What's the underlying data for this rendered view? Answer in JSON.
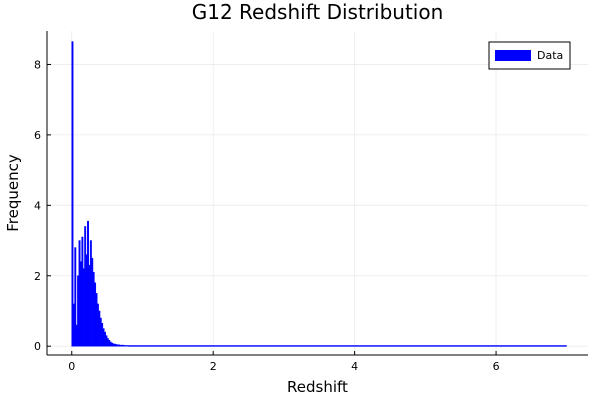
{
  "chart_data": {
    "type": "histogram",
    "title": "G12 Redshift Distribution",
    "xlabel": "Redshift",
    "ylabel": "Frequency",
    "xlim": [
      -0.35,
      7.3
    ],
    "ylim": [
      -0.25,
      8.95
    ],
    "xticks": [
      0,
      2,
      4,
      6
    ],
    "yticks": [
      0,
      2,
      4,
      6,
      8
    ],
    "grid": true,
    "legend_position": "top-right",
    "series": [
      {
        "name": "Data",
        "color": "#0000ff",
        "bin_width": 0.02,
        "x_start": 0.0,
        "values": [
          8.65,
          1.2,
          2.8,
          0.6,
          2.0,
          3.0,
          2.4,
          3.1,
          2.2,
          3.4,
          2.6,
          3.55,
          2.3,
          3.0,
          2.5,
          2.1,
          1.8,
          1.5,
          1.2,
          1.0,
          0.8,
          0.65,
          0.5,
          0.4,
          0.3,
          0.22,
          0.17,
          0.12,
          0.09,
          0.07,
          0.06,
          0.05,
          0.04,
          0.04,
          0.03,
          0.03,
          0.03,
          0.02,
          0.02,
          0.02
        ],
        "tail_value": 0.01,
        "x_end": 7.0
      }
    ]
  }
}
